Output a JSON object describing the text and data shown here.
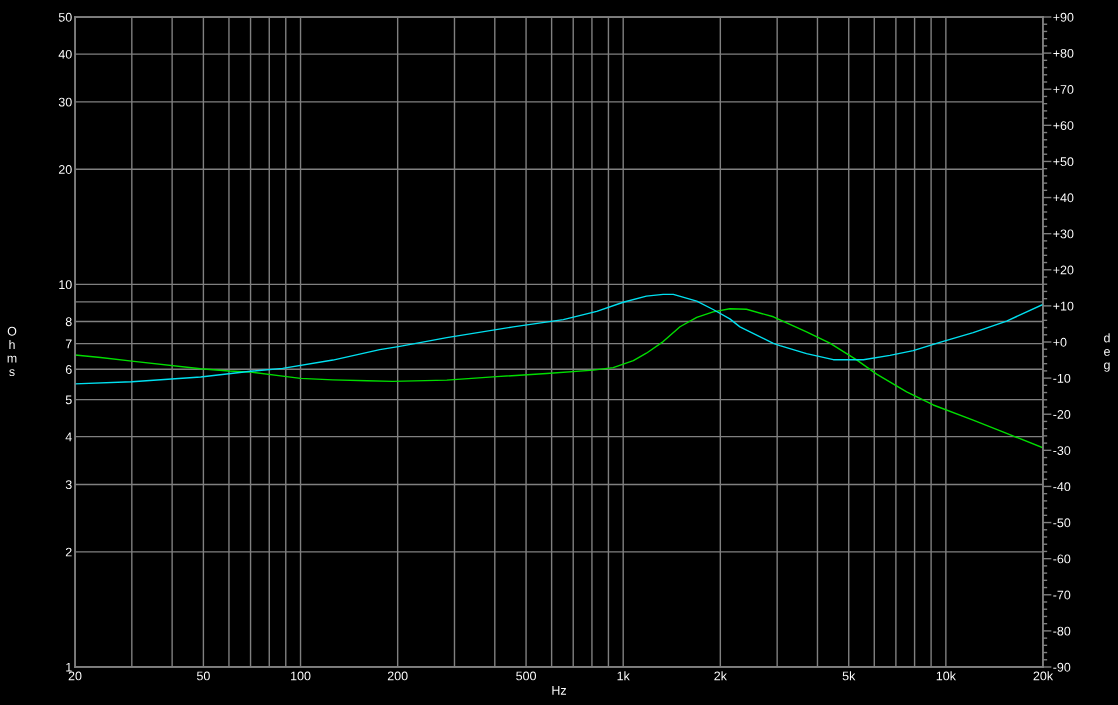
{
  "chart_data": {
    "type": "line",
    "xlabel": "Hz",
    "ylabel": "Ohms",
    "y2label": "deg",
    "log": "xy",
    "grid": true,
    "xlim": [
      20,
      20000
    ],
    "ylim": [
      1,
      50
    ],
    "y2lim": [
      -90,
      90
    ],
    "xticks": [
      20,
      {
        "value": 30,
        "label": null
      },
      {
        "value": 40,
        "label": null
      },
      50,
      {
        "value": 60,
        "label": null
      },
      {
        "value": 70,
        "label": null
      },
      {
        "value": 80,
        "label": null
      },
      {
        "value": 90,
        "label": null
      },
      100,
      200,
      {
        "value": 300,
        "label": null
      },
      {
        "value": 400,
        "label": null
      },
      500,
      {
        "value": 600,
        "label": null
      },
      {
        "value": 700,
        "label": null
      },
      {
        "value": 800,
        "label": null
      },
      {
        "value": 900,
        "label": null
      },
      {
        "value": 1000,
        "label": "1k"
      },
      {
        "value": 2000,
        "label": "2k"
      },
      {
        "value": 3000,
        "label": null
      },
      {
        "value": 4000,
        "label": null
      },
      {
        "value": 5000,
        "label": "5k"
      },
      {
        "value": 6000,
        "label": null
      },
      {
        "value": 7000,
        "label": null
      },
      {
        "value": 8000,
        "label": null
      },
      {
        "value": 9000,
        "label": null
      },
      {
        "value": 10000,
        "label": "10k"
      },
      {
        "value": 20000,
        "label": "20k"
      }
    ],
    "yticks": [
      1,
      2,
      3,
      4,
      5,
      6,
      7,
      8,
      {
        "value": 9,
        "label": null
      },
      10,
      20,
      30,
      40,
      50
    ],
    "y2ticks": [
      -90,
      {
        "value": -88,
        "label": null
      },
      {
        "value": -86,
        "label": null
      },
      {
        "value": -84,
        "label": null
      },
      {
        "value": -82,
        "label": null
      },
      -80,
      {
        "value": -78,
        "label": null
      },
      {
        "value": -76,
        "label": null
      },
      {
        "value": -74,
        "label": null
      },
      {
        "value": -72,
        "label": null
      },
      -70,
      {
        "value": -68,
        "label": null
      },
      {
        "value": -66,
        "label": null
      },
      {
        "value": -64,
        "label": null
      },
      {
        "value": -62,
        "label": null
      },
      -60,
      {
        "value": -58,
        "label": null
      },
      {
        "value": -56,
        "label": null
      },
      {
        "value": -54,
        "label": null
      },
      {
        "value": -52,
        "label": null
      },
      -50,
      {
        "value": -48,
        "label": null
      },
      {
        "value": -46,
        "label": null
      },
      {
        "value": -44,
        "label": null
      },
      {
        "value": -42,
        "label": null
      },
      -40,
      {
        "value": -38,
        "label": null
      },
      {
        "value": -36,
        "label": null
      },
      {
        "value": -34,
        "label": null
      },
      {
        "value": -32,
        "label": null
      },
      -30,
      {
        "value": -28,
        "label": null
      },
      {
        "value": -26,
        "label": null
      },
      {
        "value": -24,
        "label": null
      },
      {
        "value": -22,
        "label": null
      },
      -20,
      {
        "value": -18,
        "label": null
      },
      {
        "value": -16,
        "label": null
      },
      {
        "value": -14,
        "label": null
      },
      {
        "value": -12,
        "label": null
      },
      -10,
      {
        "value": -8,
        "label": null
      },
      {
        "value": -6,
        "label": null
      },
      {
        "value": -4,
        "label": null
      },
      {
        "value": -2,
        "label": null
      },
      {
        "value": 0,
        "label": "+0"
      },
      {
        "value": 2,
        "label": null
      },
      {
        "value": 4,
        "label": null
      },
      {
        "value": 6,
        "label": null
      },
      {
        "value": 8,
        "label": null
      },
      {
        "value": 10,
        "label": "+10"
      },
      {
        "value": 12,
        "label": null
      },
      {
        "value": 14,
        "label": null
      },
      {
        "value": 16,
        "label": null
      },
      {
        "value": 18,
        "label": null
      },
      {
        "value": 20,
        "label": "+20"
      },
      {
        "value": 22,
        "label": null
      },
      {
        "value": 24,
        "label": null
      },
      {
        "value": 26,
        "label": null
      },
      {
        "value": 28,
        "label": null
      },
      {
        "value": 30,
        "label": "+30"
      },
      {
        "value": 32,
        "label": null
      },
      {
        "value": 34,
        "label": null
      },
      {
        "value": 36,
        "label": null
      },
      {
        "value": 38,
        "label": null
      },
      {
        "value": 40,
        "label": "+40"
      },
      {
        "value": 42,
        "label": null
      },
      {
        "value": 44,
        "label": null
      },
      {
        "value": 46,
        "label": null
      },
      {
        "value": 48,
        "label": null
      },
      {
        "value": 50,
        "label": "+50"
      },
      {
        "value": 52,
        "label": null
      },
      {
        "value": 54,
        "label": null
      },
      {
        "value": 56,
        "label": null
      },
      {
        "value": 58,
        "label": null
      },
      {
        "value": 60,
        "label": "+60"
      },
      {
        "value": 62,
        "label": null
      },
      {
        "value": 64,
        "label": null
      },
      {
        "value": 66,
        "label": null
      },
      {
        "value": 68,
        "label": null
      },
      {
        "value": 70,
        "label": "+70"
      },
      {
        "value": 72,
        "label": null
      },
      {
        "value": 74,
        "label": null
      },
      {
        "value": 76,
        "label": null
      },
      {
        "value": 78,
        "label": null
      },
      {
        "value": 80,
        "label": "+80"
      },
      {
        "value": 82,
        "label": null
      },
      {
        "value": 84,
        "label": null
      },
      {
        "value": 86,
        "label": null
      },
      {
        "value": 88,
        "label": null
      },
      {
        "value": 90,
        "label": "+90"
      }
    ],
    "series": [
      {
        "color": "#00dd00",
        "x": [
          20,
          24,
          30,
          49,
          60,
          70,
          88,
          100,
          126,
          161,
          193,
          284,
          405,
          579,
          808,
          931,
          1075,
          1180,
          1330,
          1500,
          1690,
          1900,
          2140,
          2410,
          2920,
          3700,
          4370,
          5290,
          6100,
          7560,
          9140,
          12150,
          15430,
          20000
        ],
        "values": [
          6.54,
          6.44,
          6.3,
          6.02,
          5.94,
          5.9,
          5.76,
          5.68,
          5.63,
          5.6,
          5.58,
          5.62,
          5.74,
          5.85,
          5.97,
          6.06,
          6.32,
          6.61,
          7.09,
          7.75,
          8.2,
          8.48,
          8.64,
          8.61,
          8.23,
          7.52,
          7.02,
          6.35,
          5.83,
          5.24,
          4.84,
          4.42,
          4.08,
          3.74
        ]
      },
      {
        "color": "#00e0f0",
        "axis": "y2",
        "x": [
          20,
          30,
          49,
          70,
          88,
          126,
          176,
          203,
          284,
          456,
          652,
          828,
          1000,
          1180,
          1330,
          1430,
          1690,
          1900,
          2140,
          2300,
          2920,
          3060,
          3700,
          4480,
          5550,
          6710,
          7920,
          9580,
          12150,
          15430,
          20000
        ],
        "values": [
          -11.6,
          -11.0,
          -9.7,
          -8.1,
          -7.3,
          -5.0,
          -2.1,
          -1.2,
          1.2,
          4.2,
          6.2,
          8.5,
          11.0,
          12.7,
          13.2,
          13.2,
          11.3,
          9.0,
          6.4,
          4.2,
          -0.4,
          -1.0,
          -3.2,
          -4.9,
          -4.9,
          -3.7,
          -2.4,
          -0.1,
          2.6,
          5.8,
          10.4
        ]
      }
    ]
  }
}
